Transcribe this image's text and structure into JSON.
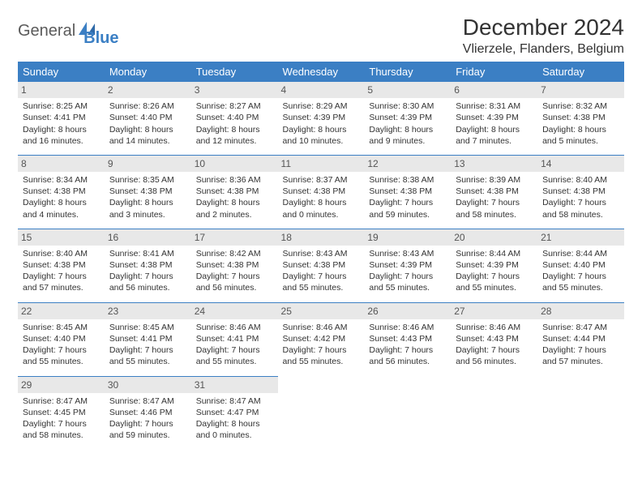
{
  "brand": {
    "part1": "General",
    "part2": "Blue"
  },
  "title": "December 2024",
  "location": "Vlierzele, Flanders, Belgium",
  "colors": {
    "header_bg": "#3b7fc4",
    "header_text": "#ffffff",
    "daynum_bg": "#e8e8e8",
    "daynum_text": "#555555",
    "body_text": "#333333",
    "rule": "#3b7fc4",
    "page_bg": "#ffffff"
  },
  "typography": {
    "title_fontsize": 28,
    "location_fontsize": 16,
    "dayhead_fontsize": 13,
    "cell_fontsize": 10.5
  },
  "day_headers": [
    "Sunday",
    "Monday",
    "Tuesday",
    "Wednesday",
    "Thursday",
    "Friday",
    "Saturday"
  ],
  "weeks": [
    [
      {
        "n": "1",
        "sunrise": "Sunrise: 8:25 AM",
        "sunset": "Sunset: 4:41 PM",
        "daylight": "Daylight: 8 hours and 16 minutes."
      },
      {
        "n": "2",
        "sunrise": "Sunrise: 8:26 AM",
        "sunset": "Sunset: 4:40 PM",
        "daylight": "Daylight: 8 hours and 14 minutes."
      },
      {
        "n": "3",
        "sunrise": "Sunrise: 8:27 AM",
        "sunset": "Sunset: 4:40 PM",
        "daylight": "Daylight: 8 hours and 12 minutes."
      },
      {
        "n": "4",
        "sunrise": "Sunrise: 8:29 AM",
        "sunset": "Sunset: 4:39 PM",
        "daylight": "Daylight: 8 hours and 10 minutes."
      },
      {
        "n": "5",
        "sunrise": "Sunrise: 8:30 AM",
        "sunset": "Sunset: 4:39 PM",
        "daylight": "Daylight: 8 hours and 9 minutes."
      },
      {
        "n": "6",
        "sunrise": "Sunrise: 8:31 AM",
        "sunset": "Sunset: 4:39 PM",
        "daylight": "Daylight: 8 hours and 7 minutes."
      },
      {
        "n": "7",
        "sunrise": "Sunrise: 8:32 AM",
        "sunset": "Sunset: 4:38 PM",
        "daylight": "Daylight: 8 hours and 5 minutes."
      }
    ],
    [
      {
        "n": "8",
        "sunrise": "Sunrise: 8:34 AM",
        "sunset": "Sunset: 4:38 PM",
        "daylight": "Daylight: 8 hours and 4 minutes."
      },
      {
        "n": "9",
        "sunrise": "Sunrise: 8:35 AM",
        "sunset": "Sunset: 4:38 PM",
        "daylight": "Daylight: 8 hours and 3 minutes."
      },
      {
        "n": "10",
        "sunrise": "Sunrise: 8:36 AM",
        "sunset": "Sunset: 4:38 PM",
        "daylight": "Daylight: 8 hours and 2 minutes."
      },
      {
        "n": "11",
        "sunrise": "Sunrise: 8:37 AM",
        "sunset": "Sunset: 4:38 PM",
        "daylight": "Daylight: 8 hours and 0 minutes."
      },
      {
        "n": "12",
        "sunrise": "Sunrise: 8:38 AM",
        "sunset": "Sunset: 4:38 PM",
        "daylight": "Daylight: 7 hours and 59 minutes."
      },
      {
        "n": "13",
        "sunrise": "Sunrise: 8:39 AM",
        "sunset": "Sunset: 4:38 PM",
        "daylight": "Daylight: 7 hours and 58 minutes."
      },
      {
        "n": "14",
        "sunrise": "Sunrise: 8:40 AM",
        "sunset": "Sunset: 4:38 PM",
        "daylight": "Daylight: 7 hours and 58 minutes."
      }
    ],
    [
      {
        "n": "15",
        "sunrise": "Sunrise: 8:40 AM",
        "sunset": "Sunset: 4:38 PM",
        "daylight": "Daylight: 7 hours and 57 minutes."
      },
      {
        "n": "16",
        "sunrise": "Sunrise: 8:41 AM",
        "sunset": "Sunset: 4:38 PM",
        "daylight": "Daylight: 7 hours and 56 minutes."
      },
      {
        "n": "17",
        "sunrise": "Sunrise: 8:42 AM",
        "sunset": "Sunset: 4:38 PM",
        "daylight": "Daylight: 7 hours and 56 minutes."
      },
      {
        "n": "18",
        "sunrise": "Sunrise: 8:43 AM",
        "sunset": "Sunset: 4:38 PM",
        "daylight": "Daylight: 7 hours and 55 minutes."
      },
      {
        "n": "19",
        "sunrise": "Sunrise: 8:43 AM",
        "sunset": "Sunset: 4:39 PM",
        "daylight": "Daylight: 7 hours and 55 minutes."
      },
      {
        "n": "20",
        "sunrise": "Sunrise: 8:44 AM",
        "sunset": "Sunset: 4:39 PM",
        "daylight": "Daylight: 7 hours and 55 minutes."
      },
      {
        "n": "21",
        "sunrise": "Sunrise: 8:44 AM",
        "sunset": "Sunset: 4:40 PM",
        "daylight": "Daylight: 7 hours and 55 minutes."
      }
    ],
    [
      {
        "n": "22",
        "sunrise": "Sunrise: 8:45 AM",
        "sunset": "Sunset: 4:40 PM",
        "daylight": "Daylight: 7 hours and 55 minutes."
      },
      {
        "n": "23",
        "sunrise": "Sunrise: 8:45 AM",
        "sunset": "Sunset: 4:41 PM",
        "daylight": "Daylight: 7 hours and 55 minutes."
      },
      {
        "n": "24",
        "sunrise": "Sunrise: 8:46 AM",
        "sunset": "Sunset: 4:41 PM",
        "daylight": "Daylight: 7 hours and 55 minutes."
      },
      {
        "n": "25",
        "sunrise": "Sunrise: 8:46 AM",
        "sunset": "Sunset: 4:42 PM",
        "daylight": "Daylight: 7 hours and 55 minutes."
      },
      {
        "n": "26",
        "sunrise": "Sunrise: 8:46 AM",
        "sunset": "Sunset: 4:43 PM",
        "daylight": "Daylight: 7 hours and 56 minutes."
      },
      {
        "n": "27",
        "sunrise": "Sunrise: 8:46 AM",
        "sunset": "Sunset: 4:43 PM",
        "daylight": "Daylight: 7 hours and 56 minutes."
      },
      {
        "n": "28",
        "sunrise": "Sunrise: 8:47 AM",
        "sunset": "Sunset: 4:44 PM",
        "daylight": "Daylight: 7 hours and 57 minutes."
      }
    ],
    [
      {
        "n": "29",
        "sunrise": "Sunrise: 8:47 AM",
        "sunset": "Sunset: 4:45 PM",
        "daylight": "Daylight: 7 hours and 58 minutes."
      },
      {
        "n": "30",
        "sunrise": "Sunrise: 8:47 AM",
        "sunset": "Sunset: 4:46 PM",
        "daylight": "Daylight: 7 hours and 59 minutes."
      },
      {
        "n": "31",
        "sunrise": "Sunrise: 8:47 AM",
        "sunset": "Sunset: 4:47 PM",
        "daylight": "Daylight: 8 hours and 0 minutes."
      },
      null,
      null,
      null,
      null
    ]
  ]
}
